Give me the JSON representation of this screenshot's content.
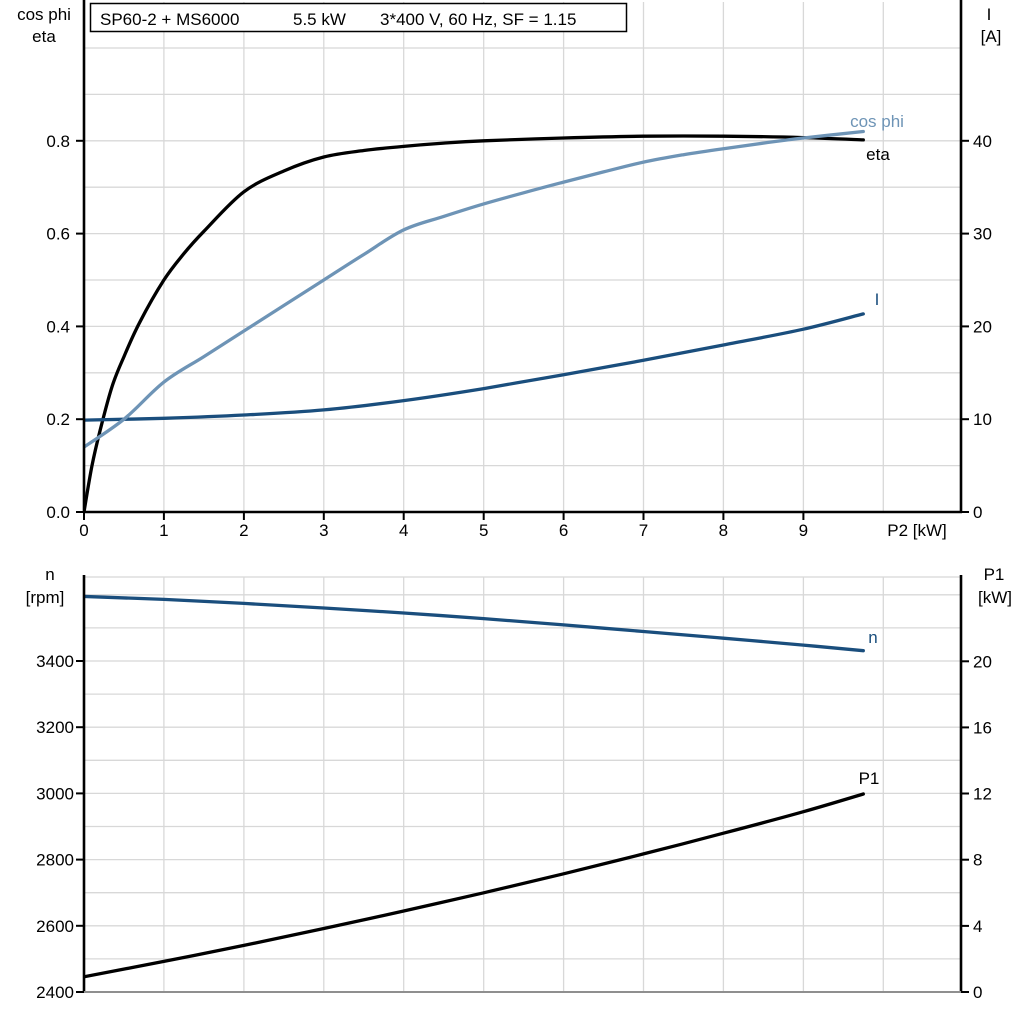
{
  "title_box": {
    "segments": [
      "SP60-2 + MS6000",
      "5.5 kW",
      "3*400 V, 60 Hz, SF = 1.15"
    ]
  },
  "colors": {
    "black": "#000000",
    "steel_blue": "#6e94b6",
    "navy": "#1a4e7d",
    "grid": "#d8d8d8",
    "axis": "#000000",
    "baseline_gray": "#8f8f8f",
    "background": "#ffffff"
  },
  "chart_data": [
    {
      "type": "line",
      "id": "motor-electrical-curves",
      "title": "SP60-2 + MS6000  5.5 kW  3*400 V, 60 Hz, SF = 1.15",
      "x_axis": {
        "label": "P2 [kW]",
        "range": [
          0,
          10.97
        ],
        "tick_values": [
          0,
          1,
          2,
          3,
          4,
          5,
          6,
          7,
          8,
          9
        ],
        "tick_labels": [
          "0",
          "1",
          "2",
          "3",
          "4",
          "5",
          "6",
          "7",
          "8",
          "9"
        ],
        "grid_step": 1
      },
      "left_axis": {
        "title_lines": [
          "cos phi",
          "eta"
        ],
        "range": [
          0,
          1.1
        ],
        "tick_values": [
          0,
          0.2,
          0.4,
          0.6,
          0.8
        ],
        "tick_labels": [
          "0.0",
          "0.2",
          "0.4",
          "0.6",
          "0.8"
        ],
        "minor_grid_step": 0.1
      },
      "right_axis": {
        "title_lines": [
          "I",
          "[A]"
        ],
        "range": [
          0,
          55.2
        ],
        "tick_values": [
          0,
          10,
          20,
          30,
          40
        ],
        "tick_labels": [
          "0",
          "10",
          "20",
          "30",
          "40"
        ]
      },
      "series": [
        {
          "name": "eta",
          "label": "eta",
          "axis": "left",
          "color_key": "black",
          "x": [
            0,
            0.1,
            0.2,
            0.35,
            0.5,
            0.7,
            1,
            1.25,
            1.5,
            2,
            2.5,
            3,
            3.5,
            4,
            4.5,
            5,
            6,
            7,
            8,
            9,
            9.75
          ],
          "y": [
            0,
            0.1,
            0.175,
            0.27,
            0.335,
            0.41,
            0.5,
            0.557,
            0.605,
            0.69,
            0.735,
            0.765,
            0.779,
            0.788,
            0.795,
            0.8,
            0.806,
            0.81,
            0.81,
            0.807,
            0.802
          ]
        },
        {
          "name": "I",
          "label": "I",
          "axis": "right",
          "color_key": "navy",
          "x": [
            0,
            1,
            2,
            3,
            4,
            5,
            6,
            7,
            8,
            9,
            9.75
          ],
          "y": [
            9.9,
            10.1,
            10.45,
            11.0,
            12.0,
            13.3,
            14.8,
            16.35,
            18.0,
            19.7,
            21.35
          ]
        },
        {
          "name": "cos phi",
          "label": "cos phi",
          "axis": "left",
          "color_key": "steel_blue",
          "x": [
            0,
            0.5,
            1,
            1.5,
            2,
            2.5,
            3,
            3.5,
            4,
            4.5,
            5,
            5.5,
            6,
            6.5,
            7,
            7.5,
            8,
            8.5,
            9,
            9.75
          ],
          "y": [
            0.14,
            0.2,
            0.28,
            0.335,
            0.39,
            0.445,
            0.5,
            0.555,
            0.608,
            0.637,
            0.664,
            0.688,
            0.711,
            0.733,
            0.754,
            0.77,
            0.783,
            0.795,
            0.806,
            0.82
          ]
        }
      ]
    },
    {
      "type": "line",
      "id": "speed-and-input-power-curves",
      "title": "",
      "x_axis": {
        "label": "",
        "range": [
          0,
          10.97
        ],
        "tick_values": [],
        "tick_labels": [],
        "grid_step": 1
      },
      "left_axis": {
        "title_lines": [
          "n",
          "[rpm]"
        ],
        "range": [
          2400,
          3654
        ],
        "tick_values": [
          2400,
          2600,
          2800,
          3000,
          3200,
          3400
        ],
        "tick_labels": [
          "2400",
          "2600",
          "2800",
          "3000",
          "3200",
          "3400"
        ],
        "minor_grid_step": 100
      },
      "right_axis": {
        "title_lines": [
          "P1",
          "[kW]"
        ],
        "range": [
          0,
          25.1
        ],
        "tick_values": [
          0,
          4,
          8,
          12,
          16,
          20
        ],
        "tick_labels": [
          "0",
          "4",
          "8",
          "12",
          "16",
          "20"
        ]
      },
      "series": [
        {
          "name": "n",
          "label": "n",
          "axis": "left",
          "color_key": "navy",
          "x": [
            0,
            1,
            2,
            3,
            4,
            5,
            6,
            7,
            8,
            9,
            9.75
          ],
          "y": [
            3595,
            3586,
            3574,
            3560,
            3545,
            3528,
            3509,
            3489,
            3469,
            3448,
            3431
          ]
        },
        {
          "name": "P1",
          "label": "P1",
          "axis": "right",
          "color_key": "black",
          "x": [
            0,
            1,
            2,
            3,
            4,
            5,
            6,
            7,
            8,
            9,
            9.75
          ],
          "y": [
            0.92,
            1.85,
            2.82,
            3.84,
            4.9,
            6.0,
            7.15,
            8.35,
            9.6,
            10.9,
            11.97
          ]
        }
      ]
    }
  ]
}
